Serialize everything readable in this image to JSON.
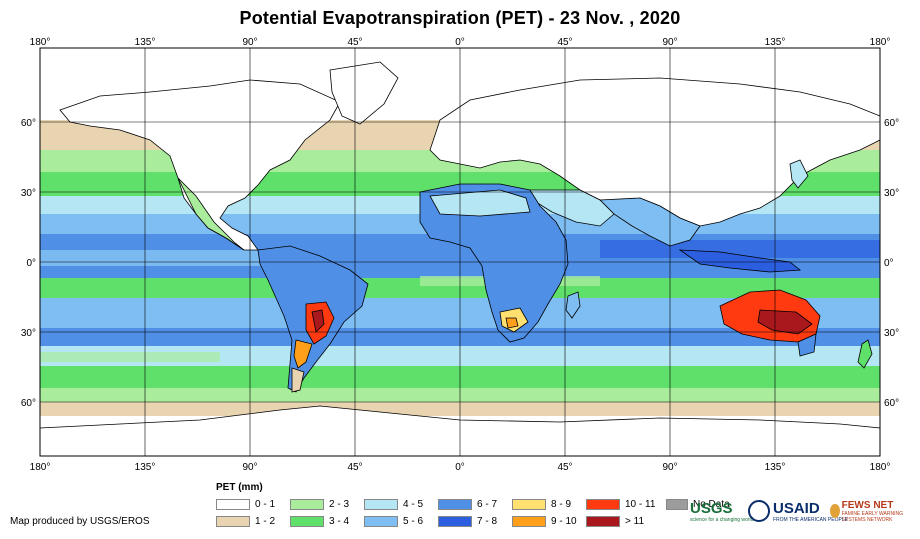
{
  "title": "Potential Evapotranspiration (PET) - 23 Nov. , 2020",
  "longitude_labels": [
    "180°",
    "135°",
    "90°",
    "45°",
    "0°",
    "45°",
    "90°",
    "135°",
    "180°"
  ],
  "latitude_labels": [
    "60°",
    "30°",
    "0°",
    "30°",
    "60°"
  ],
  "legend": {
    "title": "PET (mm)",
    "items": [
      {
        "label": "0 - 1",
        "color": "#ffffff"
      },
      {
        "label": "1 - 2",
        "color": "#e8d4b0"
      },
      {
        "label": "2 - 3",
        "color": "#a8ec9c"
      },
      {
        "label": "3 - 4",
        "color": "#5fe06a"
      },
      {
        "label": "4 - 5",
        "color": "#b4e6f4"
      },
      {
        "label": "5 - 6",
        "color": "#7fbef2"
      },
      {
        "label": "6 - 7",
        "color": "#4f8fe6"
      },
      {
        "label": "7 - 8",
        "color": "#2c5fe0"
      },
      {
        "label": "8 - 9",
        "color": "#ffe070"
      },
      {
        "label": "9 - 10",
        "color": "#ff9f1a"
      },
      {
        "label": "10 - 11",
        "color": "#ff3a10"
      },
      {
        "label": "> 11",
        "color": "#a8181c"
      },
      {
        "label": "No Data",
        "color": "#9c9c9c"
      }
    ]
  },
  "credit": "Map produced by USGS/EROS",
  "logos": {
    "usgs": "USGS",
    "usgs_tagline": "science for a changing world",
    "usaid": "USAID",
    "usaid_tagline": "FROM THE AMERICAN PEOPLE",
    "fewsnet": "FEWS NET",
    "fewsnet_tagline": "FAMINE EARLY WARNING SYSTEMS NETWORK"
  }
}
